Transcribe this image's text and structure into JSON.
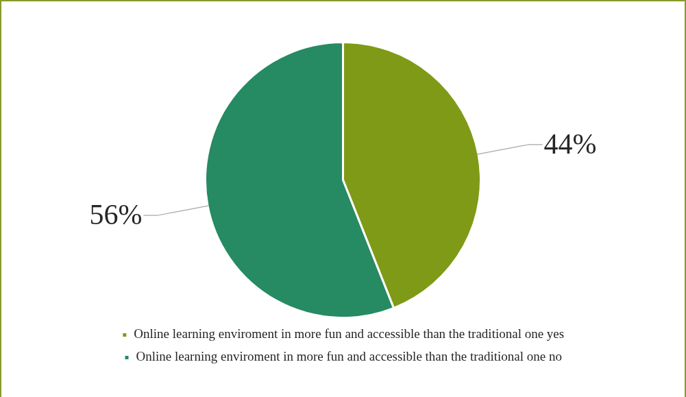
{
  "chart_data": {
    "type": "pie",
    "categories": [
      "Online learning enviroment in more fun and accessible than the traditional one yes",
      "Online learning enviroment in more fun and accessible than the traditional one no"
    ],
    "values": [
      44,
      56
    ],
    "colors": [
      "#7f9a17",
      "#268a62"
    ],
    "value_labels": [
      "44%",
      "56%"
    ],
    "legend": "bottom"
  }
}
